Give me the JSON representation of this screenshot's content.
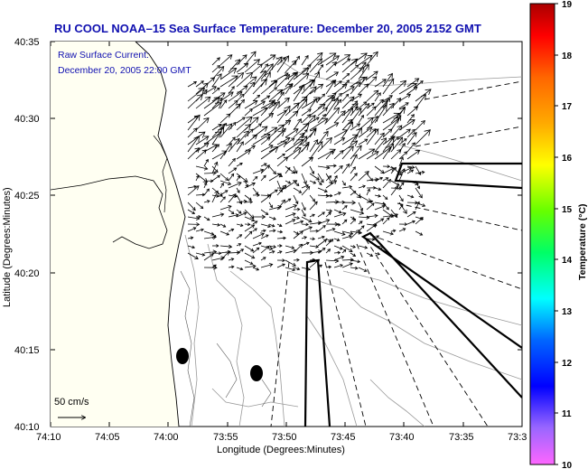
{
  "header": {
    "title": "RU COOL   NOAA–15  Sea Surface Temperature:  December 20, 2005 2152 GMT"
  },
  "legend": {
    "line1": "Raw Surface Current:",
    "line2": "December 20, 2005 22:00 GMT",
    "scale_label": "50 cm/s"
  },
  "axes": {
    "xlabel": "Longitude (Degrees:Minutes)",
    "ylabel": "Latitude (Degrees:Minutes)",
    "xticks": [
      "74:10",
      "74:05",
      "74:00",
      "73:55",
      "73:50",
      "73:45",
      "73:40",
      "73:35",
      "73:3"
    ],
    "yticks": [
      "40:35",
      "40:30",
      "40:25",
      "40:20",
      "40:15",
      "40:10"
    ]
  },
  "colorbar": {
    "label": "Temperature (°C)",
    "ticks": [
      "19",
      "18",
      "17",
      "16",
      "15",
      "14",
      "13",
      "12",
      "11",
      "10"
    ],
    "colors": [
      "#ff66ff",
      "#9966ff",
      "#0000ff",
      "#0066ff",
      "#00ffff",
      "#00ff66",
      "#66ff00",
      "#ffff00",
      "#ffaa00",
      "#ff6600",
      "#ff0000",
      "#aa0000"
    ]
  },
  "map": {
    "land_color": "#fffff2",
    "water_color": "#ffffff"
  }
}
